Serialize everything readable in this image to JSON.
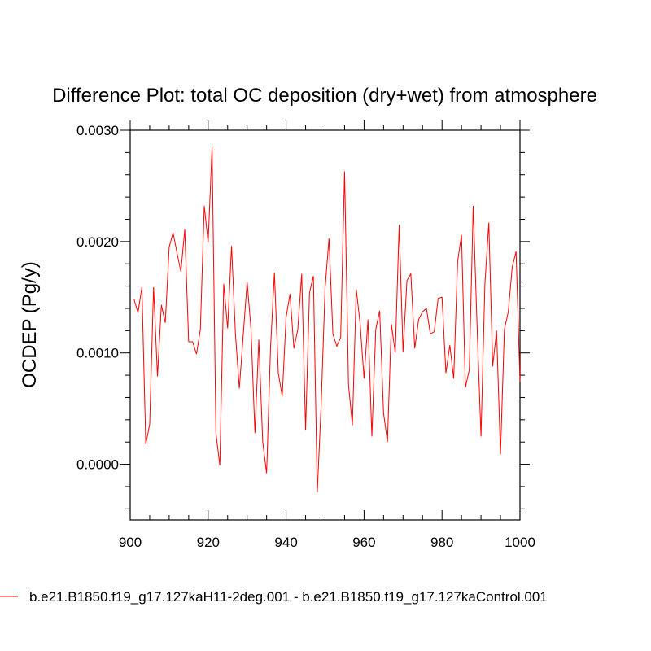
{
  "chart_data": {
    "type": "line",
    "title": "Difference Plot: total OC deposition (dry+wet) from atmosphere",
    "xlabel": "",
    "ylabel": "OCDEP  (Pg/y)",
    "xlim": [
      900,
      1000
    ],
    "ylim": [
      -0.0005,
      0.003
    ],
    "xticks": [
      900,
      920,
      940,
      960,
      980,
      1000
    ],
    "xtick_labels": [
      "900",
      "920",
      "940",
      "960",
      "980",
      "1000"
    ],
    "yticks": [
      0.0,
      0.001,
      0.002,
      0.003
    ],
    "ytick_labels": [
      "0.0000",
      "0.0010",
      "0.0020",
      "0.0030"
    ],
    "series": [
      {
        "name": "b.e21.B1850.f19_g17.127kaH11-2deg.001 - b.e21.B1850.f19_g17.127kaControl.001",
        "color": "#ff0000",
        "x": [
          901,
          902,
          903,
          904,
          905,
          906,
          907,
          908,
          909,
          910,
          911,
          912,
          913,
          914,
          915,
          916,
          917,
          918,
          919,
          920,
          921,
          922,
          923,
          924,
          925,
          926,
          927,
          928,
          929,
          930,
          931,
          932,
          933,
          934,
          935,
          936,
          937,
          938,
          939,
          940,
          941,
          942,
          943,
          944,
          945,
          946,
          947,
          948,
          949,
          950,
          951,
          952,
          953,
          954,
          955,
          956,
          957,
          958,
          959,
          960,
          961,
          962,
          963,
          964,
          965,
          966,
          967,
          968,
          969,
          970,
          971,
          972,
          973,
          974,
          975,
          976,
          977,
          978,
          979,
          980,
          981,
          982,
          983,
          984,
          985,
          986,
          987,
          988,
          989,
          990,
          991,
          992,
          993,
          994,
          995,
          996,
          997,
          998,
          999,
          1000
        ],
        "values": [
          0.00148,
          0.00136,
          0.00159,
          0.00018,
          0.00036,
          0.00159,
          0.00079,
          0.00143,
          0.00127,
          0.00195,
          0.00208,
          0.0019,
          0.00173,
          0.00211,
          0.0011,
          0.0011,
          0.00099,
          0.00121,
          0.00232,
          0.00199,
          0.00285,
          0.00028,
          -1e-05,
          0.00162,
          0.00122,
          0.00196,
          0.00117,
          0.00068,
          0.00116,
          0.00164,
          0.00121,
          0.00028,
          0.00112,
          0.0002,
          -8e-05,
          0.00104,
          0.00172,
          0.00082,
          0.00061,
          0.00132,
          0.00153,
          0.00104,
          0.00121,
          0.00171,
          0.00031,
          0.00154,
          0.00169,
          -0.00025,
          0.00054,
          0.00158,
          0.00203,
          0.00117,
          0.00106,
          0.00114,
          0.00263,
          0.00072,
          0.00035,
          0.00157,
          0.00126,
          0.00077,
          0.0013,
          0.00025,
          0.00121,
          0.00138,
          0.00046,
          0.0002,
          0.00126,
          0.001,
          0.00215,
          0.00101,
          0.00165,
          0.00171,
          0.00104,
          0.0013,
          0.00137,
          0.0014,
          0.00117,
          0.00119,
          0.00149,
          0.0015,
          0.00082,
          0.00107,
          0.00077,
          0.00182,
          0.00206,
          0.00069,
          0.00085,
          0.00232,
          0.00123,
          0.00025,
          0.00162,
          0.00217,
          0.00088,
          0.0012,
          9e-05,
          0.00121,
          0.00137,
          0.00177,
          0.00191,
          0.00074
        ]
      }
    ],
    "legend_position": "bottom"
  }
}
